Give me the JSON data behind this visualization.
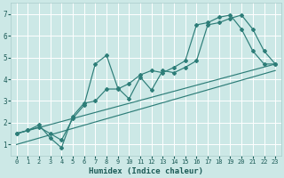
{
  "title": "",
  "xlabel": "Humidex (Indice chaleur)",
  "bg_color": "#cce8e6",
  "grid_color": "#ffffff",
  "line_color": "#2d7d78",
  "xlim": [
    -0.5,
    23.5
  ],
  "ylim": [
    0.5,
    7.5
  ],
  "xticks": [
    0,
    1,
    2,
    3,
    4,
    5,
    6,
    7,
    8,
    9,
    10,
    11,
    12,
    13,
    14,
    15,
    16,
    17,
    18,
    19,
    20,
    21,
    22,
    23
  ],
  "yticks": [
    1,
    2,
    3,
    4,
    5,
    6,
    7
  ],
  "line1_x": [
    0,
    1,
    2,
    3,
    4,
    5,
    6,
    7,
    8,
    9,
    10,
    11,
    12,
    13,
    14,
    15,
    16,
    17,
    18,
    19,
    20,
    21,
    22,
    23
  ],
  "line1_y": [
    1.5,
    1.65,
    1.8,
    1.5,
    1.2,
    2.2,
    2.8,
    4.7,
    5.1,
    3.6,
    3.1,
    4.1,
    3.5,
    4.4,
    4.3,
    4.55,
    4.85,
    6.5,
    6.6,
    6.8,
    6.95,
    6.3,
    5.3,
    4.7
  ],
  "line2_x": [
    0,
    1,
    2,
    3,
    4,
    5,
    6,
    7,
    8,
    9,
    10,
    11,
    12,
    13,
    14,
    15,
    16,
    17,
    18,
    19,
    20,
    21,
    22,
    23
  ],
  "line2_y": [
    1.5,
    1.65,
    1.9,
    1.3,
    0.85,
    2.3,
    2.9,
    3.0,
    3.55,
    3.55,
    3.8,
    4.2,
    4.4,
    4.3,
    4.55,
    4.85,
    6.5,
    6.6,
    6.85,
    6.95,
    6.3,
    5.3,
    4.7,
    4.7
  ],
  "trend_x": [
    0,
    23
  ],
  "trend_y": [
    1.5,
    4.7
  ],
  "trend2_x": [
    0,
    23
  ],
  "trend2_y": [
    1.0,
    4.4
  ]
}
